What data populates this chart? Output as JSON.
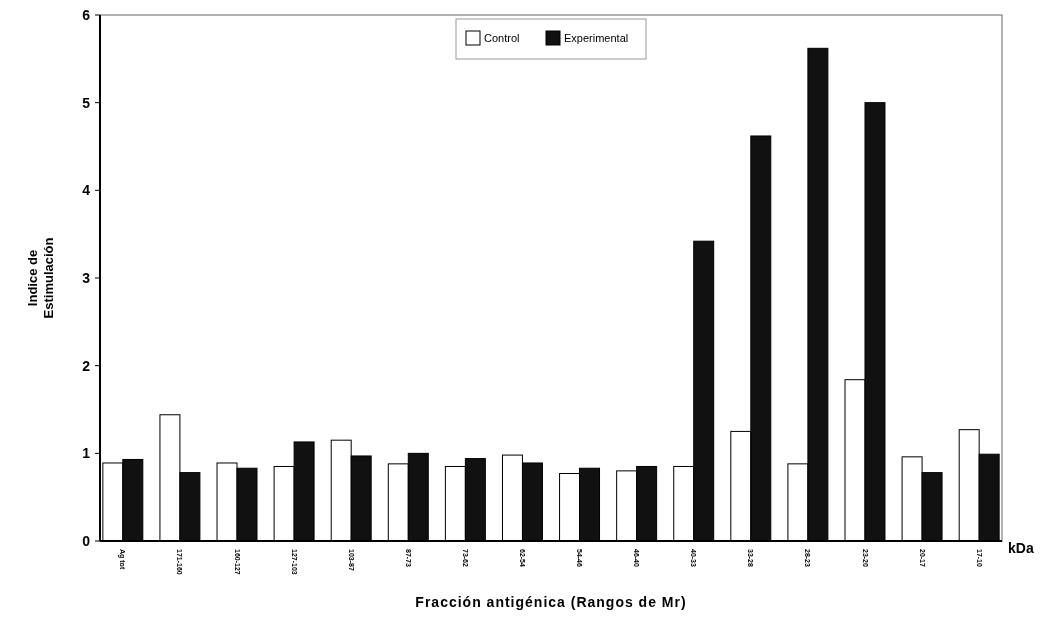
{
  "chart_data": {
    "type": "bar",
    "xlabel": "Fracción antigénica (Rangos de Mr)",
    "ylabel": "Indice de Estimulación",
    "categories": [
      "Ag tot",
      "171-160",
      "160-127",
      "127-103",
      "103-87",
      "87-73",
      "73-62",
      "62-54",
      "54-46",
      "46-40",
      "40-33",
      "33-28",
      "28-23",
      "23-20",
      "20-17",
      "17-10"
    ],
    "series": [
      {
        "name": "Control",
        "color": "#ffffff",
        "values": [
          0.89,
          1.44,
          0.89,
          0.85,
          1.15,
          0.88,
          0.85,
          0.98,
          0.77,
          0.8,
          0.85,
          1.25,
          0.88,
          1.84,
          0.96,
          1.27
        ]
      },
      {
        "name": "Experimental",
        "color": "#111111",
        "values": [
          0.93,
          0.78,
          0.83,
          1.13,
          0.97,
          1.0,
          0.94,
          0.89,
          0.83,
          0.85,
          3.42,
          4.62,
          5.62,
          5.0,
          0.78,
          0.99
        ]
      }
    ],
    "ylim": [
      0,
      6
    ],
    "yticks": [
      0,
      1,
      2,
      3,
      4,
      5,
      6
    ],
    "legend": "top",
    "annotations": [
      "kDa"
    ]
  }
}
